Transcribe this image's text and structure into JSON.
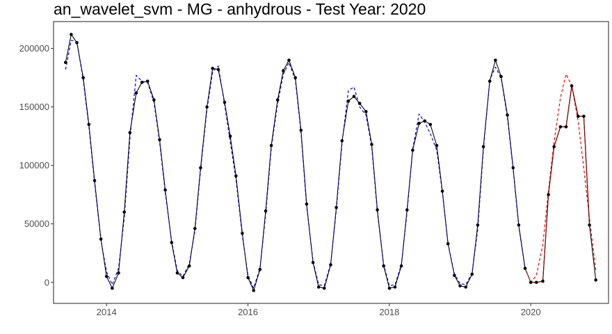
{
  "chart_data": {
    "type": "line",
    "title": "an_wavelet_svm - MG - anhydrous - Test Year: 2020",
    "xlabel": "",
    "ylabel": "",
    "xlim": [
      2013.25,
      2021.1
    ],
    "ylim": [
      -18000,
      223000
    ],
    "x_ticks": [
      2014,
      2016,
      2018,
      2020
    ],
    "y_ticks": [
      0,
      50000,
      100000,
      150000,
      200000
    ],
    "x_tick_labels": [
      "2014",
      "2016",
      "2018",
      "2020"
    ],
    "y_tick_labels": [
      "0",
      "50000",
      "100000",
      "150000",
      "200000"
    ],
    "grid": false,
    "colors": {
      "actual": "#000000",
      "train_fit": "#0000cc",
      "test_forecast": "#ee0000",
      "test_actual_segment": "#8b0000",
      "frame": "#333333"
    },
    "series": [
      {
        "role": "actual",
        "style": "solid-with-points",
        "x": [
          2013.42,
          2013.5,
          2013.58,
          2013.67,
          2013.75,
          2013.83,
          2013.92,
          2014.0,
          2014.08,
          2014.17,
          2014.25,
          2014.33,
          2014.42,
          2014.5,
          2014.58,
          2014.67,
          2014.75,
          2014.83,
          2014.92,
          2015.0,
          2015.08,
          2015.17,
          2015.25,
          2015.33,
          2015.42,
          2015.5,
          2015.58,
          2015.67,
          2015.75,
          2015.83,
          2015.92,
          2016.0,
          2016.08,
          2016.17,
          2016.25,
          2016.33,
          2016.42,
          2016.5,
          2016.58,
          2016.67,
          2016.75,
          2016.83,
          2016.92,
          2017.0,
          2017.08,
          2017.17,
          2017.25,
          2017.33,
          2017.42,
          2017.5,
          2017.58,
          2017.67,
          2017.75,
          2017.83,
          2017.92,
          2018.0,
          2018.08,
          2018.17,
          2018.25,
          2018.33,
          2018.42,
          2018.5,
          2018.58,
          2018.67,
          2018.75,
          2018.83,
          2018.92,
          2019.0,
          2019.08,
          2019.17,
          2019.25,
          2019.33,
          2019.42,
          2019.5,
          2019.58,
          2019.67,
          2019.75,
          2019.83,
          2019.92,
          2020.0,
          2020.08,
          2020.17,
          2020.25,
          2020.33,
          2020.42,
          2020.5,
          2020.58,
          2020.67,
          2020.75,
          2020.83,
          2020.92
        ],
        "values": [
          188000,
          212000,
          205000,
          175000,
          135000,
          87000,
          37000,
          5000,
          -5000,
          8000,
          60000,
          128000,
          162000,
          171000,
          172000,
          156000,
          122000,
          79000,
          34000,
          8000,
          4000,
          14000,
          46000,
          98000,
          150000,
          183000,
          182000,
          154000,
          125000,
          91000,
          42000,
          4000,
          -7000,
          11000,
          61000,
          117000,
          156000,
          181000,
          190000,
          175000,
          130000,
          67000,
          17000,
          -4000,
          -5000,
          15000,
          64000,
          121000,
          155000,
          159000,
          153000,
          146000,
          118000,
          62000,
          14000,
          -5000,
          -4000,
          14000,
          62000,
          113000,
          136000,
          138000,
          135000,
          117000,
          78000,
          33000,
          6000,
          -3000,
          -4000,
          7000,
          49000,
          116000,
          172000,
          190000,
          176000,
          143000,
          98000,
          49000,
          12000,
          0,
          0,
          1000,
          75000,
          116000,
          133000,
          133000,
          168000,
          142000,
          142000,
          49000,
          2000
        ]
      },
      {
        "role": "train_fit",
        "style": "dashed",
        "x": [
          2013.42,
          2013.5,
          2013.58,
          2013.67,
          2013.75,
          2013.83,
          2013.92,
          2014.0,
          2014.08,
          2014.17,
          2014.25,
          2014.33,
          2014.42,
          2014.5,
          2014.58,
          2014.67,
          2014.75,
          2014.83,
          2014.92,
          2015.0,
          2015.08,
          2015.17,
          2015.25,
          2015.33,
          2015.42,
          2015.5,
          2015.58,
          2015.67,
          2015.75,
          2015.83,
          2015.92,
          2016.0,
          2016.08,
          2016.17,
          2016.25,
          2016.33,
          2016.42,
          2016.5,
          2016.58,
          2016.67,
          2016.75,
          2016.83,
          2016.92,
          2017.0,
          2017.08,
          2017.17,
          2017.25,
          2017.33,
          2017.42,
          2017.5,
          2017.58,
          2017.67,
          2017.75,
          2017.83,
          2017.92,
          2018.0,
          2018.08,
          2018.17,
          2018.25,
          2018.33,
          2018.42,
          2018.5,
          2018.58,
          2018.67,
          2018.75,
          2018.83,
          2018.92,
          2019.0,
          2019.08,
          2019.17,
          2019.25,
          2019.33,
          2019.42,
          2019.5,
          2019.58,
          2019.67,
          2019.75,
          2019.83,
          2019.92
        ],
        "values": [
          182000,
          207000,
          206000,
          173000,
          133000,
          85000,
          36000,
          9000,
          -2000,
          12000,
          55000,
          123000,
          177000,
          172000,
          171000,
          154000,
          120000,
          77000,
          35000,
          10000,
          5000,
          16000,
          44000,
          96000,
          148000,
          180000,
          185000,
          152000,
          120000,
          88000,
          40000,
          6000,
          -5000,
          12000,
          58000,
          115000,
          153000,
          178000,
          188000,
          173000,
          128000,
          65000,
          18000,
          -2000,
          -3000,
          16000,
          62000,
          119000,
          164000,
          167000,
          150000,
          143000,
          116000,
          60000,
          15000,
          -3000,
          -2000,
          15000,
          60000,
          114000,
          144000,
          137000,
          127000,
          113000,
          77000,
          33000,
          7000,
          -1000,
          -2000,
          8000,
          45000,
          114000,
          173000,
          184000,
          175000,
          141000,
          97000,
          48000,
          12000
        ]
      },
      {
        "role": "test_forecast",
        "style": "dashed",
        "x": [
          2019.92,
          2020.0,
          2020.08,
          2020.17,
          2020.25,
          2020.33,
          2020.42,
          2020.5,
          2020.58,
          2020.67,
          2020.75,
          2020.83,
          2020.92
        ],
        "values": [
          12000,
          0,
          6000,
          32000,
          78000,
          120000,
          158000,
          178000,
          168000,
          138000,
          98000,
          55000,
          10000
        ]
      },
      {
        "role": "test_actual_segment",
        "style": "solid",
        "x": [
          2020.0,
          2020.08,
          2020.17,
          2020.25,
          2020.33,
          2020.42,
          2020.5,
          2020.58,
          2020.67,
          2020.75,
          2020.83
        ],
        "values": [
          0,
          0,
          1000,
          75000,
          116000,
          133000,
          133000,
          168000,
          142000,
          142000,
          49000
        ]
      }
    ]
  }
}
